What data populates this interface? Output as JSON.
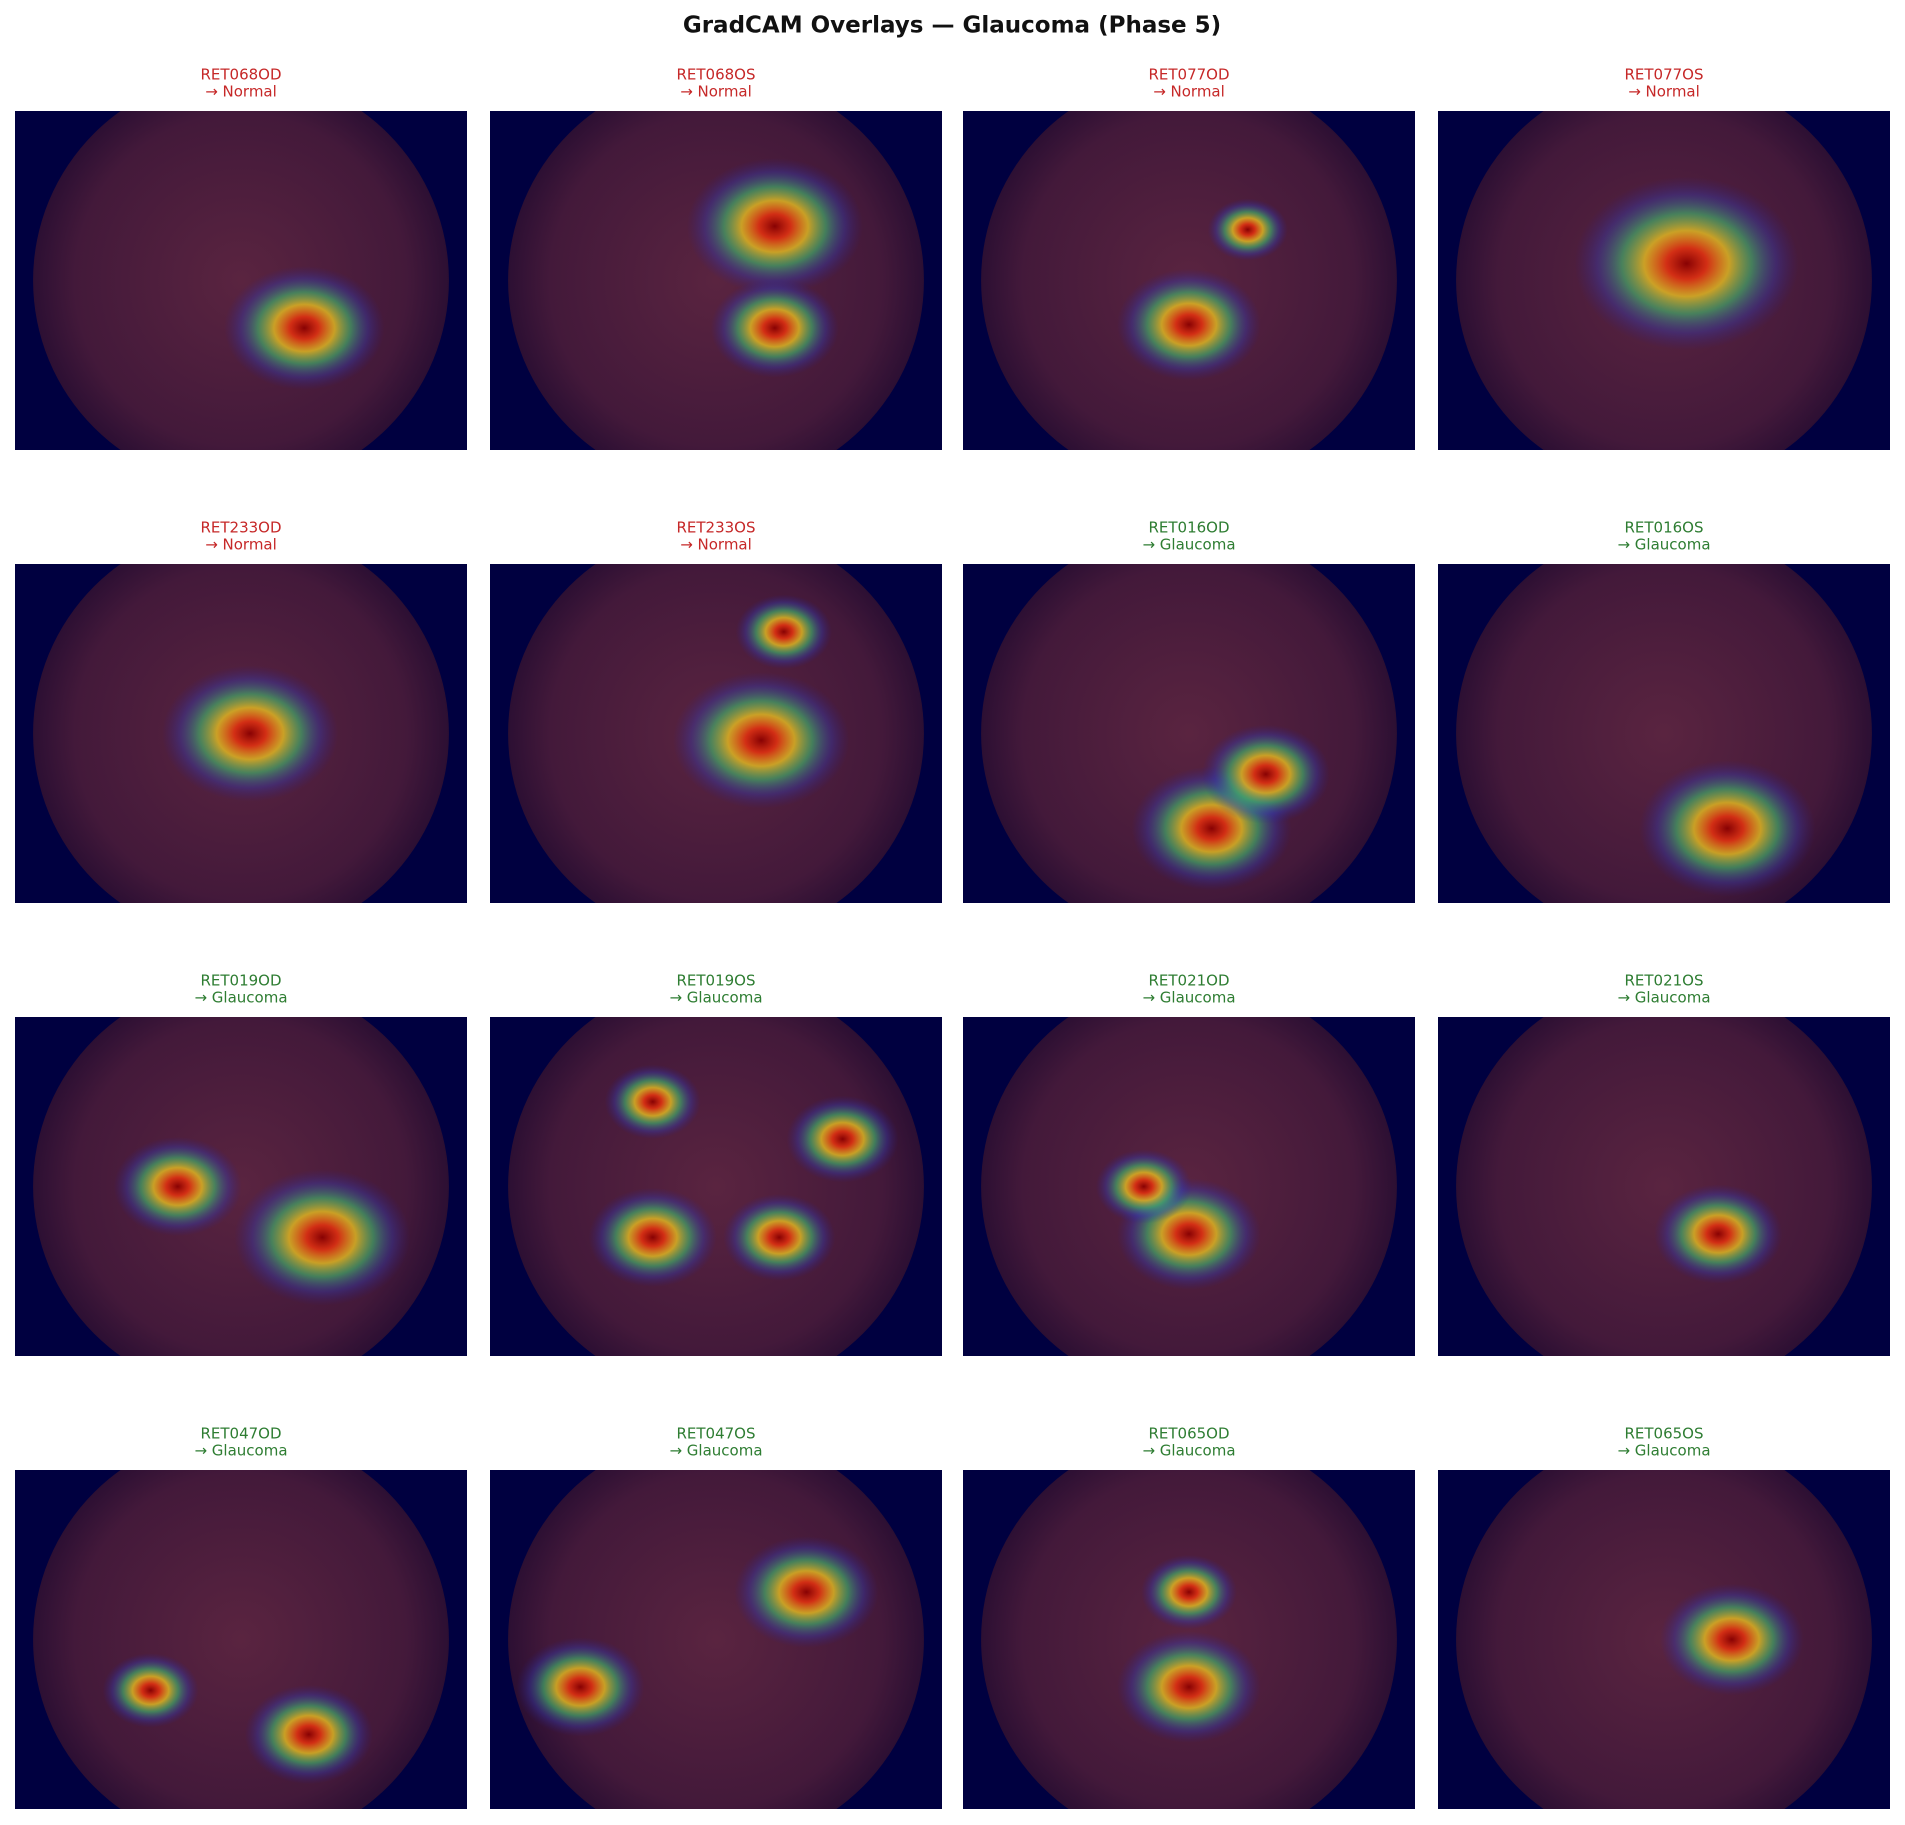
{
  "header": {
    "title": "GradCAM Overlays — Glaucoma (Phase 5)"
  },
  "panels": [
    {
      "id": "RET068OD",
      "label": "→ Normal",
      "color": "#c62828"
    },
    {
      "id": "RET068OS",
      "label": "→ Normal",
      "color": "#c62828"
    },
    {
      "id": "RET077OD",
      "label": "→ Normal",
      "color": "#c62828"
    },
    {
      "id": "RET077OS",
      "label": "→ Normal",
      "color": "#c62828"
    },
    {
      "id": "RET233OD",
      "label": "→ Normal",
      "color": "#c62828"
    },
    {
      "id": "RET233OS",
      "label": "→ Normal",
      "color": "#c62828"
    },
    {
      "id": "RET016OD",
      "label": "→ Glaucoma",
      "color": "#2e7d32"
    },
    {
      "id": "RET016OS",
      "label": "→ Glaucoma",
      "color": "#2e7d32"
    },
    {
      "id": "RET019OD",
      "label": "→ Glaucoma",
      "color": "#2e7d32"
    },
    {
      "id": "RET019OS",
      "label": "→ Glaucoma",
      "color": "#2e7d32"
    },
    {
      "id": "RET021OD",
      "label": "→ Glaucoma",
      "color": "#2e7d32"
    },
    {
      "id": "RET021OS",
      "label": "→ Glaucoma",
      "color": "#2e7d32"
    },
    {
      "id": "RET047OD",
      "label": "→ Glaucoma",
      "color": "#2e7d32"
    },
    {
      "id": "RET047OS",
      "label": "→ Glaucoma",
      "color": "#2e7d32"
    },
    {
      "id": "RET065OD",
      "label": "→ Glaucoma",
      "color": "#2e7d32"
    },
    {
      "id": "RET065OS",
      "label": "→ Glaucoma",
      "color": "#2e7d32"
    }
  ]
}
